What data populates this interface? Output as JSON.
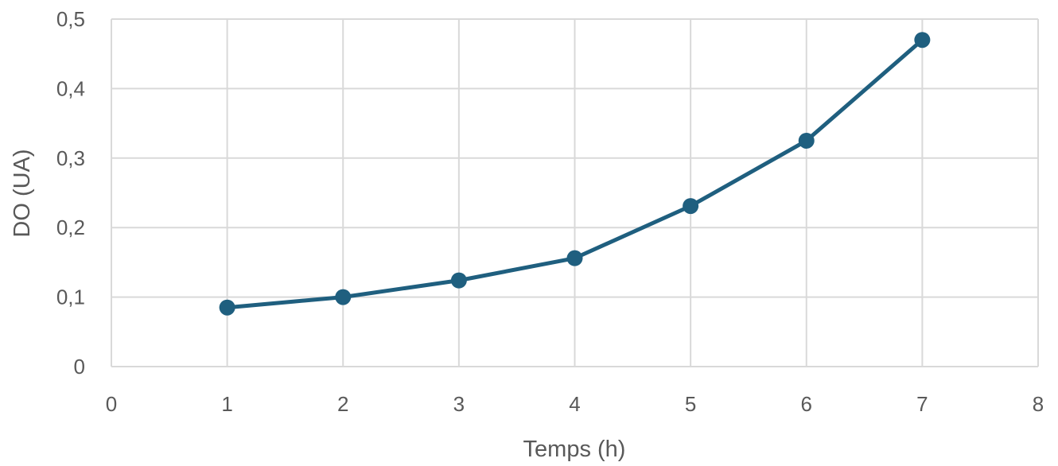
{
  "chart_data": {
    "type": "line",
    "title": "",
    "xlabel": "Temps (h)",
    "ylabel": "DO (UA)",
    "xlim": [
      0,
      8
    ],
    "ylim": [
      0,
      0.5
    ],
    "x_ticks": [
      "0",
      "1",
      "2",
      "3",
      "4",
      "5",
      "6",
      "7",
      "8"
    ],
    "y_ticks": [
      "0",
      "0,1",
      "0,2",
      "0,3",
      "0,4",
      "0,5"
    ],
    "grid": true,
    "legend": "none",
    "series": [
      {
        "color": "#1f5f7f",
        "x": [
          1,
          2,
          3,
          4,
          5,
          6,
          7
        ],
        "y": [
          0.085,
          0.1,
          0.124,
          0.156,
          0.231,
          0.325,
          0.47
        ]
      }
    ]
  }
}
